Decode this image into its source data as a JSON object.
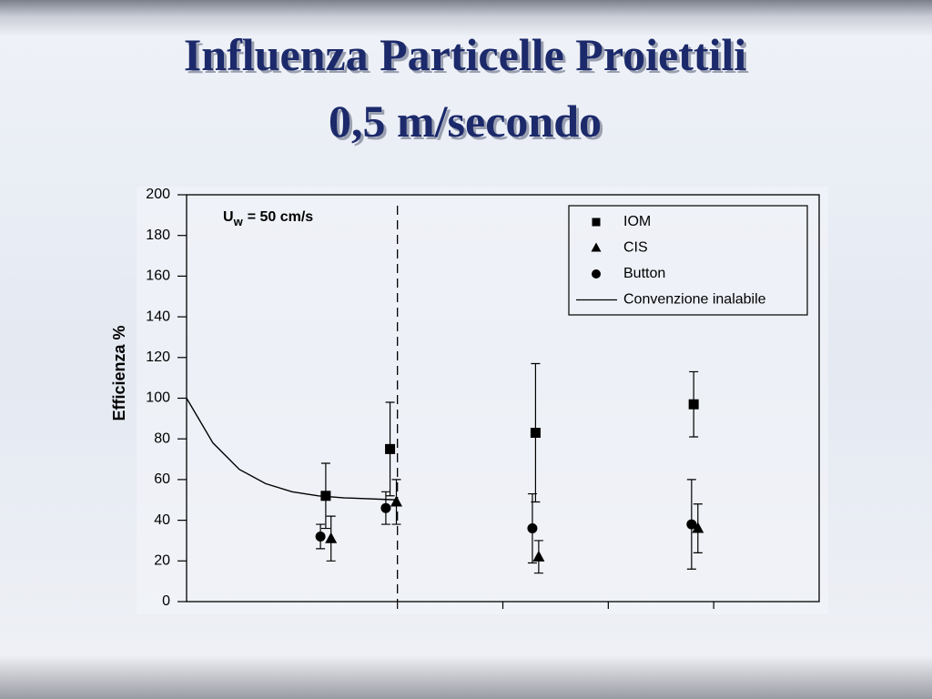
{
  "chart_data": {
    "type": "errorbar-scatter",
    "title": "Influenza Particelle Proiettili",
    "subtitle": "0,5 m/secondo",
    "y_label": "Efficienza %",
    "annotation": {
      "main": "U",
      "subscript": "w",
      "text": "= 50 cm/s"
    },
    "xlim": [
      0,
      6
    ],
    "xticks": [
      2,
      3,
      4,
      5
    ],
    "ylim": [
      0,
      200
    ],
    "yticks": [
      0,
      20,
      40,
      60,
      80,
      100,
      120,
      140,
      160,
      180,
      200
    ],
    "divider_x": 2,
    "series": [
      {
        "name": "IOM",
        "marker": "square",
        "color": "#000000",
        "x": [
          1.32,
          1.93,
          3.31,
          4.81
        ],
        "values": [
          52,
          75,
          83,
          97
        ],
        "errors": [
          16,
          23,
          34,
          16
        ]
      },
      {
        "name": "CIS",
        "marker": "triangle",
        "color": "#000000",
        "x": [
          1.37,
          1.99,
          3.34,
          4.85
        ],
        "values": [
          31,
          49,
          22,
          36
        ],
        "errors": [
          11,
          11,
          8,
          12
        ]
      },
      {
        "name": "Button",
        "marker": "circle",
        "color": "#000000",
        "x": [
          1.27,
          1.89,
          3.28,
          4.79
        ],
        "values": [
          32,
          46,
          36,
          38
        ],
        "errors": [
          6,
          8,
          17,
          22
        ]
      },
      {
        "name": "Convenzione inalabile",
        "marker": "line",
        "color": "#000000",
        "x": [
          0,
          0.25,
          0.5,
          0.75,
          1,
          1.25,
          1.5,
          2
        ],
        "values": [
          100,
          78,
          65,
          58,
          54,
          52,
          51,
          50
        ]
      }
    ]
  }
}
